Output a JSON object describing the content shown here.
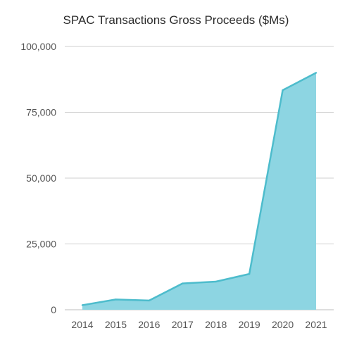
{
  "chart_data": {
    "type": "area",
    "title": "SPAC Transactions Gross Proceeds ($Ms)",
    "xlabel": "",
    "ylabel": "",
    "categories": [
      "2014",
      "2015",
      "2016",
      "2017",
      "2018",
      "2019",
      "2020",
      "2021"
    ],
    "values": [
      1750,
      3900,
      3500,
      10000,
      10700,
      13600,
      83400,
      90000
    ],
    "ylim": [
      0,
      100000
    ],
    "y_ticks": [
      0,
      25000,
      50000,
      75000,
      100000
    ],
    "y_tick_labels": [
      "0",
      "25,000",
      "50,000",
      "75,000",
      "100,000"
    ],
    "grid": true,
    "legend": "none",
    "colors": {
      "fill": "#8dd5e2",
      "line": "#4dbccc",
      "grid": "#cfcfcf",
      "text": "#555555"
    }
  }
}
